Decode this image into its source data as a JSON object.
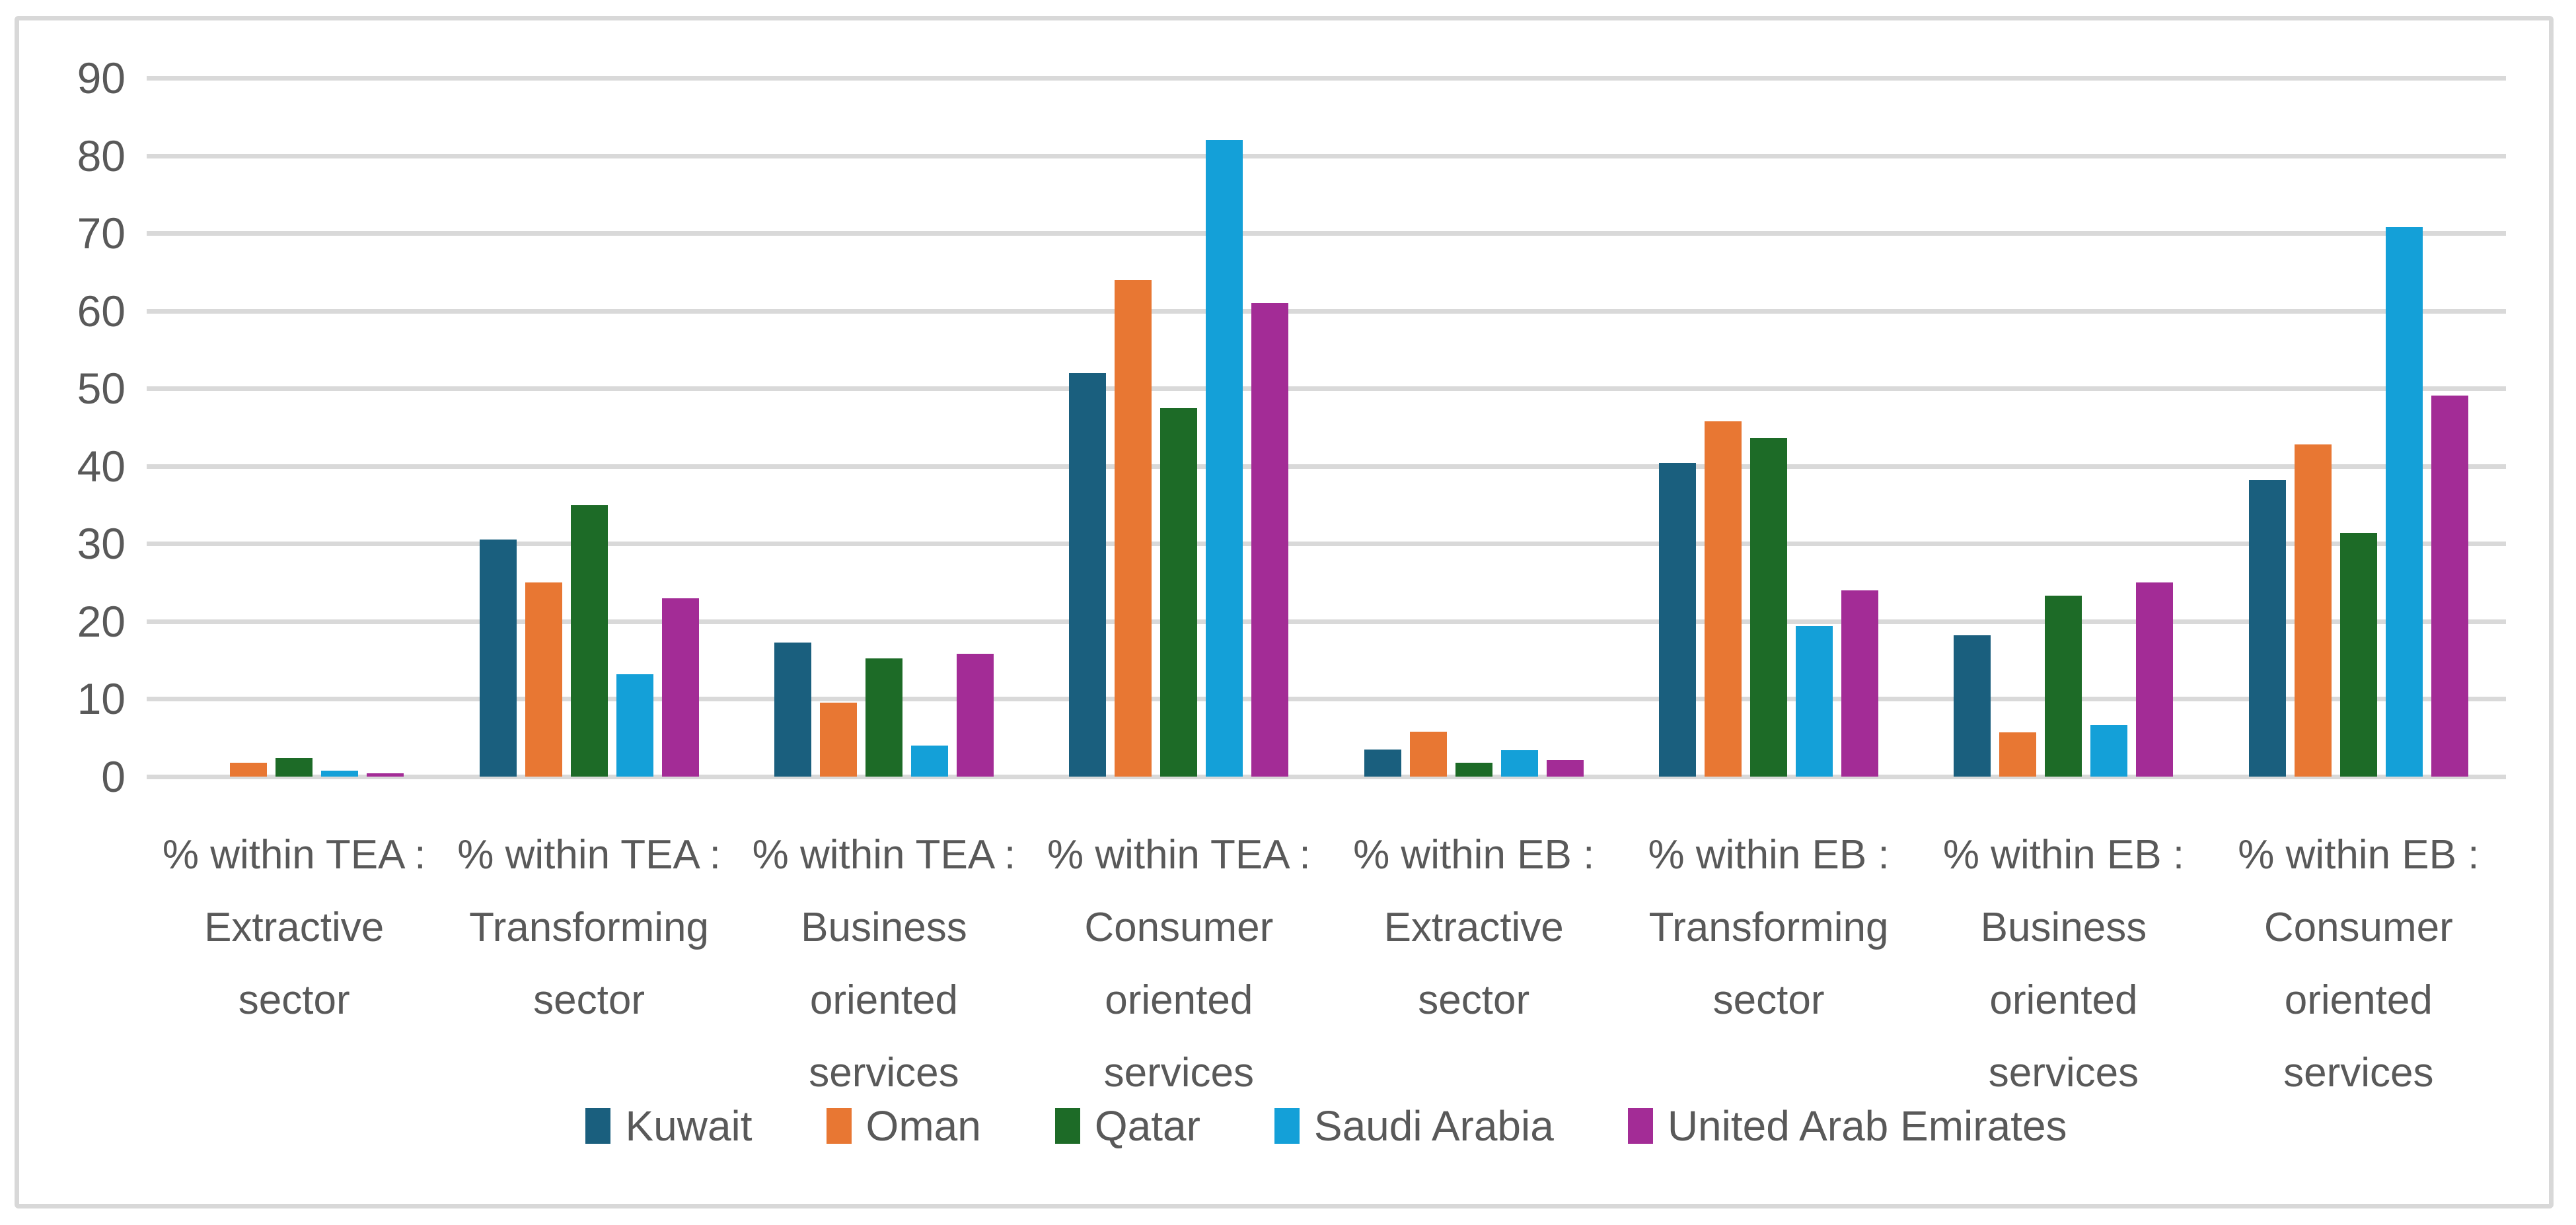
{
  "figure": {
    "background_color": "#ffffff",
    "border_color": "#d8d8d8",
    "text_color": "#595959",
    "gridline_color": "#d9d9d9"
  },
  "chart_data": {
    "type": "bar",
    "title": "",
    "grid": true,
    "legend_position": "bottom",
    "ylim": [
      0,
      90
    ],
    "ytick_interval": 10,
    "yticks": [
      0,
      10,
      20,
      30,
      40,
      50,
      60,
      70,
      80,
      90
    ],
    "categories": [
      "% within TEA : Extractive sector",
      "% within TEA : Transforming sector",
      "% within TEA : Business oriented services",
      "% within TEA : Consumer oriented services",
      "% within EB : Extractive sector",
      "% within EB : Transforming sector",
      "% within EB : Business oriented services",
      "% within EB : Consumer oriented services"
    ],
    "series": [
      {
        "name": "Kuwait",
        "color": "#1a5f7e",
        "values": [
          0,
          30.5,
          17.3,
          52,
          3.5,
          40.4,
          18.2,
          38.2
        ]
      },
      {
        "name": "Oman",
        "color": "#e87733",
        "values": [
          1.8,
          25,
          9.5,
          64,
          5.8,
          45.8,
          5.7,
          42.8
        ]
      },
      {
        "name": "Qatar",
        "color": "#1d6b27",
        "values": [
          2.4,
          35,
          15.2,
          47.5,
          1.8,
          43.6,
          23.3,
          31.4
        ]
      },
      {
        "name": "Saudi Arabia",
        "color": "#14a0d8",
        "values": [
          0.8,
          13.2,
          4,
          82,
          3.4,
          19.4,
          6.6,
          70.8
        ]
      },
      {
        "name": "United Arab Emirates",
        "color": "#a32c96",
        "values": [
          0.4,
          23,
          15.8,
          61,
          2.1,
          24,
          25,
          49.1
        ]
      }
    ]
  }
}
